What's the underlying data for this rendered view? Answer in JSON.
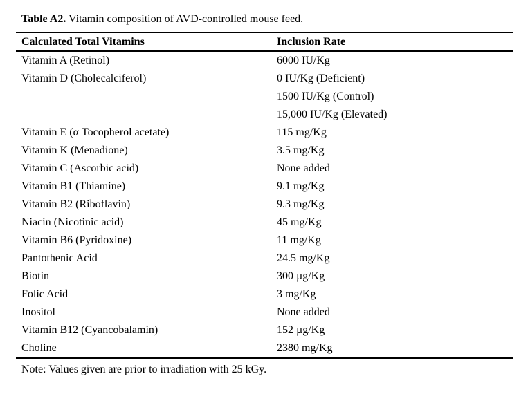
{
  "page": {
    "caption_label": "Table A2.",
    "caption_text": " Vitamin composition of AVD-controlled mouse feed.",
    "note": "Note: Values given are prior to irradiation with 25 kGy."
  },
  "table": {
    "columns": [
      "Calculated Total Vitamins",
      "Inclusion Rate"
    ],
    "rows": [
      {
        "vitamin": "Vitamin A (Retinol)",
        "rate": "6000 IU/Kg"
      },
      {
        "vitamin": "Vitamin D (Cholecalciferol)",
        "rate": "0 IU/Kg (Deficient)"
      },
      {
        "vitamin": "",
        "rate": "1500 IU/Kg (Control)"
      },
      {
        "vitamin": "",
        "rate": "15,000 IU/Kg (Elevated)"
      },
      {
        "vitamin": "Vitamin E (α Tocopherol acetate)",
        "rate": "115 mg/Kg"
      },
      {
        "vitamin": "Vitamin K (Menadione)",
        "rate": "3.5 mg/Kg"
      },
      {
        "vitamin": "Vitamin C (Ascorbic acid)",
        "rate": "None added"
      },
      {
        "vitamin": "Vitamin B1 (Thiamine)",
        "rate": "9.1 mg/Kg"
      },
      {
        "vitamin": "Vitamin B2 (Riboflavin)",
        "rate": "9.3 mg/Kg"
      },
      {
        "vitamin": "Niacin (Nicotinic acid)",
        "rate": "45 mg/Kg"
      },
      {
        "vitamin": "Vitamin B6 (Pyridoxine)",
        "rate": "11 mg/Kg"
      },
      {
        "vitamin": "Pantothenic Acid",
        "rate": "24.5 mg/Kg"
      },
      {
        "vitamin": "Biotin",
        "rate": "300 µg/Kg"
      },
      {
        "vitamin": "Folic Acid",
        "rate": "3 mg/Kg"
      },
      {
        "vitamin": "Inositol",
        "rate": "None added"
      },
      {
        "vitamin": "Vitamin B12 (Cyancobalamin)",
        "rate": "152 µg/Kg"
      },
      {
        "vitamin": "Choline",
        "rate": "2380 mg/Kg"
      }
    ]
  },
  "colors": {
    "text": "#000000",
    "background": "#ffffff",
    "rule": "#000000"
  }
}
